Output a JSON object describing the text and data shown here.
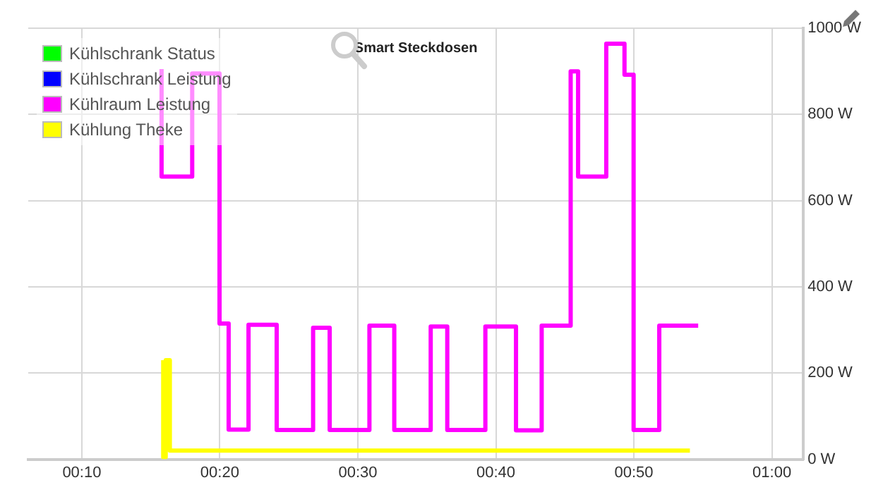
{
  "chart_data": {
    "type": "step",
    "title": "Smart Steckdosen",
    "xlim": [
      0.102,
      1.038
    ],
    "ylim": [
      0,
      1000
    ],
    "xticks": [
      {
        "value": 0.1667,
        "label": "00:10"
      },
      {
        "value": 0.3333,
        "label": "00:20"
      },
      {
        "value": 0.5,
        "label": "00:30"
      },
      {
        "value": 0.6667,
        "label": "00:40"
      },
      {
        "value": 0.8333,
        "label": "00:50"
      },
      {
        "value": 1,
        "label": "01:00"
      }
    ],
    "yticks": [
      {
        "value": 0,
        "label": "0 W"
      },
      {
        "value": 200,
        "label": "200 W"
      },
      {
        "value": 400,
        "label": "400 W"
      },
      {
        "value": 600,
        "label": "600 W"
      },
      {
        "value": 800,
        "label": "800 W"
      },
      {
        "value": 1000,
        "label": "1000 W"
      }
    ],
    "grid": true,
    "legend": "top left",
    "line_style": "solid",
    "marker": "none",
    "series": [
      {
        "name": "Kühlschrank Status",
        "color": "#00ff00"
      },
      {
        "name": "Kühlschrank Leistung",
        "color": "#0000ff"
      },
      {
        "name": "Kühlraum Leistung",
        "color": "#ff00ff",
        "x": [
          0.263,
          0.3,
          0.333,
          0.344,
          0.368,
          0.402,
          0.446,
          0.466,
          0.514,
          0.544,
          0.588,
          0.608,
          0.654,
          0.691,
          0.722,
          0.757,
          0.766,
          0.8,
          0.822,
          0.833,
          0.864,
          0.901,
          0.911
        ],
        "values": [
          905,
          656,
          895,
          315,
          69,
          312,
          68,
          305,
          68,
          310,
          68,
          308,
          68,
          308,
          67,
          310,
          900,
          656,
          964,
          892,
          68,
          310,
          310
        ]
      },
      {
        "name": "Kühlung Theke",
        "color": "#ffff00",
        "x": [
          0.265,
          0.268,
          0.273,
          0.278,
          0.901
        ],
        "values": [
          230,
          5,
          230,
          20,
          20
        ]
      }
    ]
  }
}
